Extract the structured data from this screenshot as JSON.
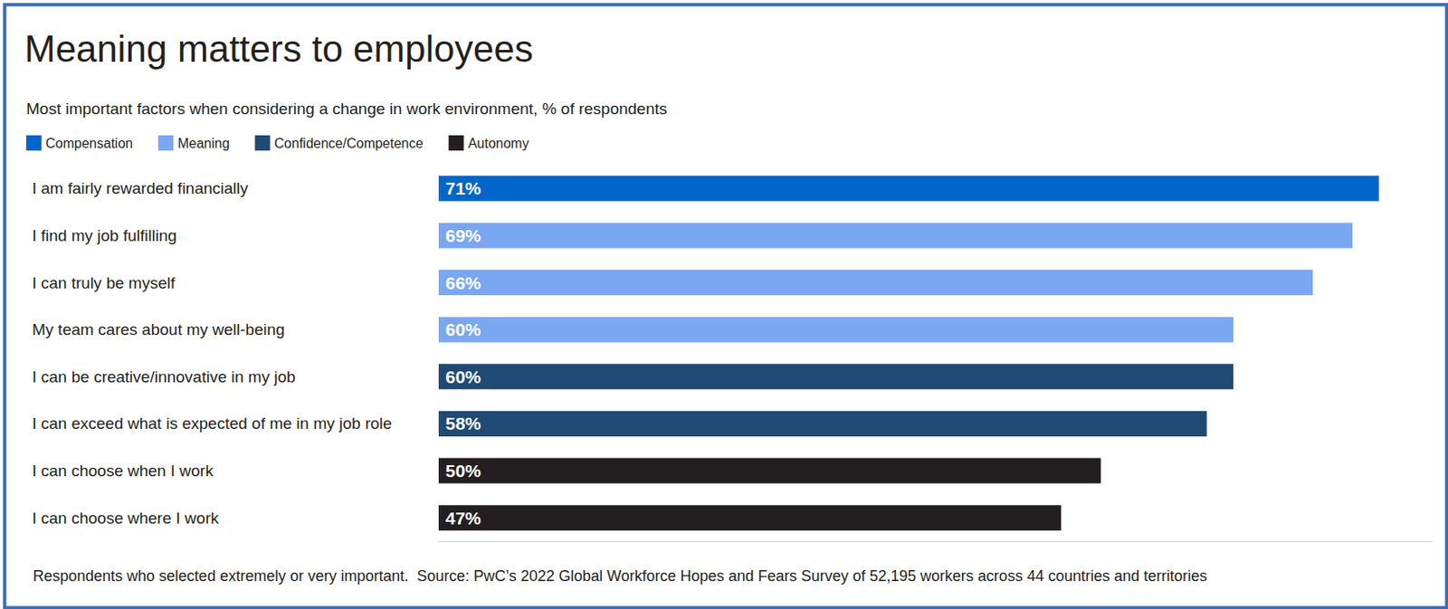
{
  "chart_data": {
    "type": "bar",
    "orientation": "horizontal",
    "title": "Meaning matters to employees",
    "subtitle": "Most important factors when considering a change in work environment, % of respondents",
    "footnote": "Respondents who selected extremely or very important.  Source: PwC’s 2022 Global Workforce Hopes and Fears Survey of 52,195 workers across 44 countries and territories",
    "categories": [
      "I am fairly rewarded financially",
      "I find my job fulfilling",
      "I can truly be myself",
      "My team cares about my well-being",
      "I can be creative/innovative in my job",
      "I can exceed what is expected of me in my job role",
      "I can choose when I work",
      "I can choose where I work"
    ],
    "series": [
      {
        "name": "Compensation",
        "color": "#0066cc",
        "values": [
          71,
          null,
          null,
          null,
          null,
          null,
          null,
          null
        ],
        "value_labels": [
          "71%",
          null,
          null,
          null,
          null,
          null,
          null,
          null
        ]
      },
      {
        "name": "Meaning",
        "color": "#7aa7f2",
        "values": [
          null,
          69,
          66,
          60,
          null,
          null,
          null,
          null
        ],
        "value_labels": [
          null,
          "69%",
          "66%",
          "60%",
          null,
          null,
          null,
          null
        ]
      },
      {
        "name": "Confidence/Competence",
        "color": "#1f4a73",
        "values": [
          null,
          null,
          null,
          null,
          60,
          58,
          null,
          null
        ],
        "value_labels": [
          null,
          null,
          null,
          null,
          "60%",
          "58%",
          null,
          null
        ]
      },
      {
        "name": "Autonomy",
        "color": "#231f20",
        "values": [
          null,
          null,
          null,
          null,
          null,
          null,
          50,
          47
        ],
        "value_labels": [
          null,
          null,
          null,
          null,
          null,
          null,
          "50%",
          "47%"
        ]
      }
    ],
    "xlim": [
      0,
      75
    ],
    "xticks": [],
    "grid": false,
    "legend": "top-left",
    "data_labels": true,
    "tick_labels": "y"
  }
}
